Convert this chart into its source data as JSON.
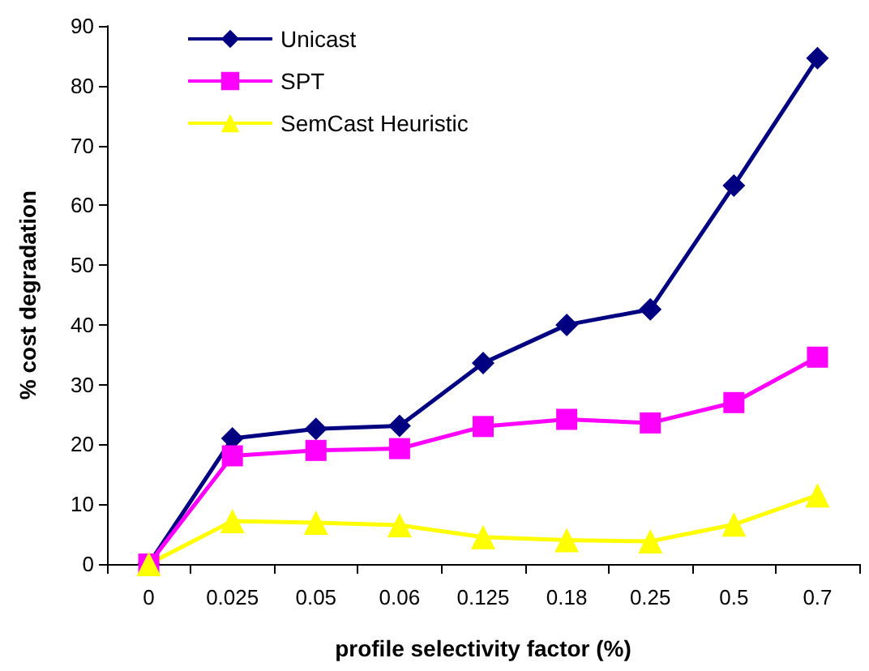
{
  "chart_data": {
    "type": "line",
    "xlabel": "profile selectivity factor (%)",
    "ylabel": "% cost degradation",
    "categories": [
      "0",
      "0.025",
      "0.05",
      "0.06",
      "0.125",
      "0.18",
      "0.25",
      "0.5",
      "0.7"
    ],
    "series": [
      {
        "name": "Unicast",
        "color": "#000080",
        "marker": "diamond",
        "values": [
          0,
          21,
          22.6,
          23.1,
          33.6,
          40,
          42.6,
          63.3,
          84.6
        ]
      },
      {
        "name": "SPT",
        "color": "#ff00ff",
        "marker": "square",
        "values": [
          0,
          18.1,
          19,
          19.3,
          23,
          24.2,
          23.6,
          27,
          34.6
        ]
      },
      {
        "name": "SemCast Heuristic",
        "color": "#ffff00",
        "marker": "triangle",
        "values": [
          0,
          7.2,
          6.9,
          6.5,
          4.5,
          4,
          3.8,
          6.6,
          11.5
        ]
      }
    ],
    "ylim": [
      0,
      90
    ],
    "yticks": [
      0,
      10,
      20,
      30,
      40,
      50,
      60,
      70,
      80,
      90
    ],
    "grid": false,
    "legend": "top left",
    "line_style": "solid"
  }
}
